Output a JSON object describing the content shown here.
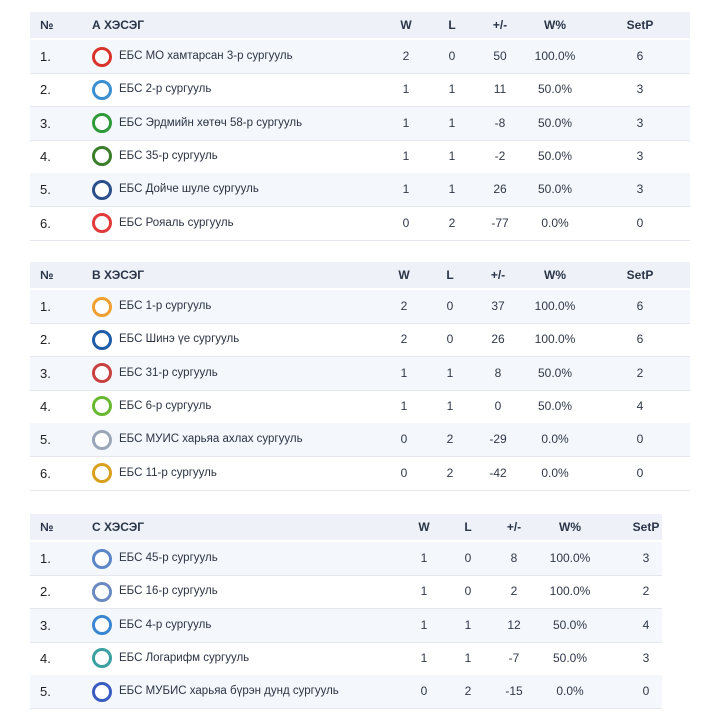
{
  "groups": [
    {
      "title": "А ХЭСЭГ",
      "headers": {
        "rank": "№",
        "w": "W",
        "l": "L",
        "diff": "+/-",
        "pct": "W%",
        "setp": "SetP"
      },
      "rows": [
        {
          "rank": "1.",
          "team": "ЕБС МО хамтарсан 3-р сургууль",
          "w": "2",
          "l": "0",
          "diff": "50",
          "pct": "100.0%",
          "setp": "6",
          "logo": "red-white-crest-icon",
          "logo_color": "#d8342c"
        },
        {
          "rank": "2.",
          "team": "ЕБС 2-р сургууль",
          "w": "1",
          "l": "1",
          "diff": "11",
          "pct": "50.0%",
          "setp": "3",
          "logo": "blue-figure-icon",
          "logo_color": "#3a8fd0"
        },
        {
          "rank": "3.",
          "team": "ЕБС Эрдмийн хөтөч 58-р сургууль",
          "w": "1",
          "l": "1",
          "diff": "-8",
          "pct": "50.0%",
          "setp": "3",
          "logo": "green-yellow-emblem-icon",
          "logo_color": "#2f9a3a"
        },
        {
          "rank": "4.",
          "team": "ЕБС 35-р сургууль",
          "w": "1",
          "l": "1",
          "diff": "-2",
          "pct": "50.0%",
          "setp": "3",
          "logo": "green-star-emblem-icon",
          "logo_color": "#3a7d2a"
        },
        {
          "rank": "5.",
          "team": "ЕБС Дойче шуле сургууль",
          "w": "1",
          "l": "1",
          "diff": "26",
          "pct": "50.0%",
          "setp": "3",
          "logo": "eye-emblem-icon",
          "logo_color": "#2b4f8a"
        },
        {
          "rank": "6.",
          "team": "ЕБС Рояаль сургууль",
          "w": "0",
          "l": "2",
          "diff": "-77",
          "pct": "0.0%",
          "setp": "0",
          "logo": "red-r-logo-icon",
          "logo_color": "#e23a3a"
        }
      ]
    },
    {
      "title": "В ХЭСЭГ",
      "headers": {
        "rank": "№",
        "w": "W",
        "l": "L",
        "diff": "+/-",
        "pct": "W%",
        "setp": "SetP"
      },
      "rows": [
        {
          "rank": "1.",
          "team": "ЕБС 1-р сургууль",
          "w": "2",
          "l": "0",
          "diff": "37",
          "pct": "100.0%",
          "setp": "6",
          "logo": "orange-hand-icon",
          "logo_color": "#f0a030"
        },
        {
          "rank": "2.",
          "team": "ЕБС Шинэ үе сургууль",
          "w": "2",
          "l": "0",
          "diff": "26",
          "pct": "100.0%",
          "setp": "6",
          "logo": "blue-yellow-circle-icon",
          "logo_color": "#1f5ca8"
        },
        {
          "rank": "3.",
          "team": "ЕБС 31-р сургууль",
          "w": "1",
          "l": "1",
          "diff": "8",
          "pct": "50.0%",
          "setp": "2",
          "logo": "red-blue-stripes-icon",
          "logo_color": "#c84040"
        },
        {
          "rank": "4.",
          "team": "ЕБС 6-р сургууль",
          "w": "1",
          "l": "1",
          "diff": "0",
          "pct": "50.0%",
          "setp": "4",
          "logo": "green-triangle-icon",
          "logo_color": "#6ab830"
        },
        {
          "rank": "5.",
          "team": "ЕБС МУИС харьяа ахлах сургууль",
          "w": "0",
          "l": "2",
          "diff": "-29",
          "pct": "0.0%",
          "setp": "0",
          "logo": "grey-building-icon",
          "logo_color": "#9aa6b8"
        },
        {
          "rank": "6.",
          "team": "ЕБС 11-р сургууль",
          "w": "0",
          "l": "2",
          "diff": "-42",
          "pct": "0.0%",
          "setp": "0",
          "logo": "gold-medal-icon",
          "logo_color": "#d9a020"
        }
      ]
    },
    {
      "title": "С ХЭСЭГ",
      "headers": {
        "rank": "№",
        "w": "W",
        "l": "L",
        "diff": "+/-",
        "pct": "W%",
        "setp": "SetP"
      },
      "rows": [
        {
          "rank": "1.",
          "team": "ЕБС 45-р сургууль",
          "w": "1",
          "l": "0",
          "diff": "8",
          "pct": "100.0%",
          "setp": "3",
          "logo": "blue-crest-icon",
          "logo_color": "#5b86c8"
        },
        {
          "rank": "2.",
          "team": "ЕБС 16-р сургууль",
          "w": "1",
          "l": "0",
          "diff": "2",
          "pct": "100.0%",
          "setp": "2",
          "logo": "dotted-circle-icon",
          "logo_color": "#6a8ac0"
        },
        {
          "rank": "3.",
          "team": "ЕБС 4-р сургууль",
          "w": "1",
          "l": "1",
          "diff": "12",
          "pct": "50.0%",
          "setp": "4",
          "logo": "blue-globe-icon",
          "logo_color": "#3a86d0"
        },
        {
          "rank": "4.",
          "team": "ЕБС Логарифм сургууль",
          "w": "1",
          "l": "1",
          "diff": "-7",
          "pct": "50.0%",
          "setp": "3",
          "logo": "teal-wordmark-icon",
          "logo_color": "#3aa0a0"
        },
        {
          "rank": "5.",
          "team": "ЕБС МУБИС харьяа бүрэн дунд сургууль",
          "w": "0",
          "l": "2",
          "diff": "-15",
          "pct": "0.0%",
          "setp": "0",
          "logo": "blue-ring-icon",
          "logo_color": "#3a5cc0"
        }
      ]
    }
  ]
}
